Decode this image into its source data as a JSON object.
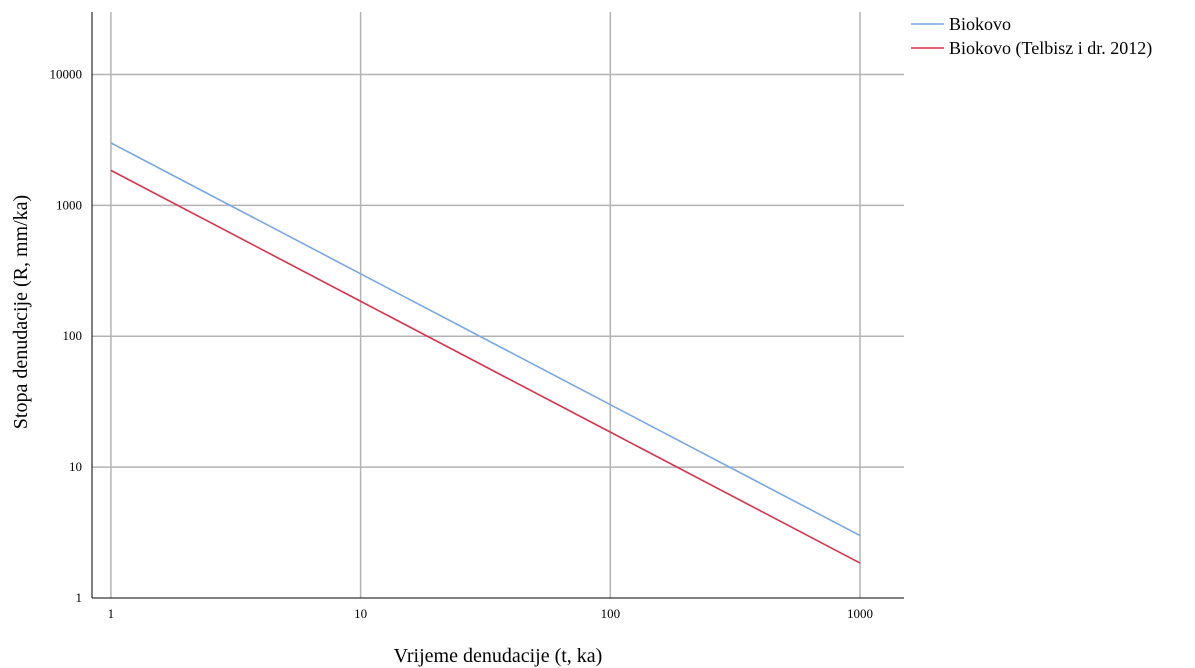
{
  "chart_data": {
    "type": "line",
    "title": "",
    "xlabel": "Vrijeme denudacije (t, ka)",
    "ylabel": "Stopa denudacije (R, mm/ka)",
    "x_scale": "log",
    "y_scale": "log",
    "xlim": [
      0.84,
      1500
    ],
    "ylim": [
      1,
      30000
    ],
    "x_ticks": [
      1,
      10,
      100,
      1000
    ],
    "x_tick_labels": [
      "1",
      "10",
      "100",
      "1000"
    ],
    "y_ticks": [
      1,
      10,
      100,
      1000,
      10000
    ],
    "y_tick_labels": [
      "1",
      "10",
      "100",
      "1000",
      "10000"
    ],
    "grid": true,
    "legend_position": "top-right, outside plot",
    "series": [
      {
        "name": "Biokovo",
        "color": "#7aa7e3",
        "x": [
          1,
          10,
          100,
          1000
        ],
        "y": [
          3000,
          300,
          30,
          3
        ]
      },
      {
        "name": "Biokovo (Telbisz i dr. 2012)",
        "color": "#d6344f",
        "x": [
          1,
          10,
          100,
          1000
        ],
        "y": [
          1850,
          185,
          18.5,
          1.85
        ]
      }
    ]
  }
}
